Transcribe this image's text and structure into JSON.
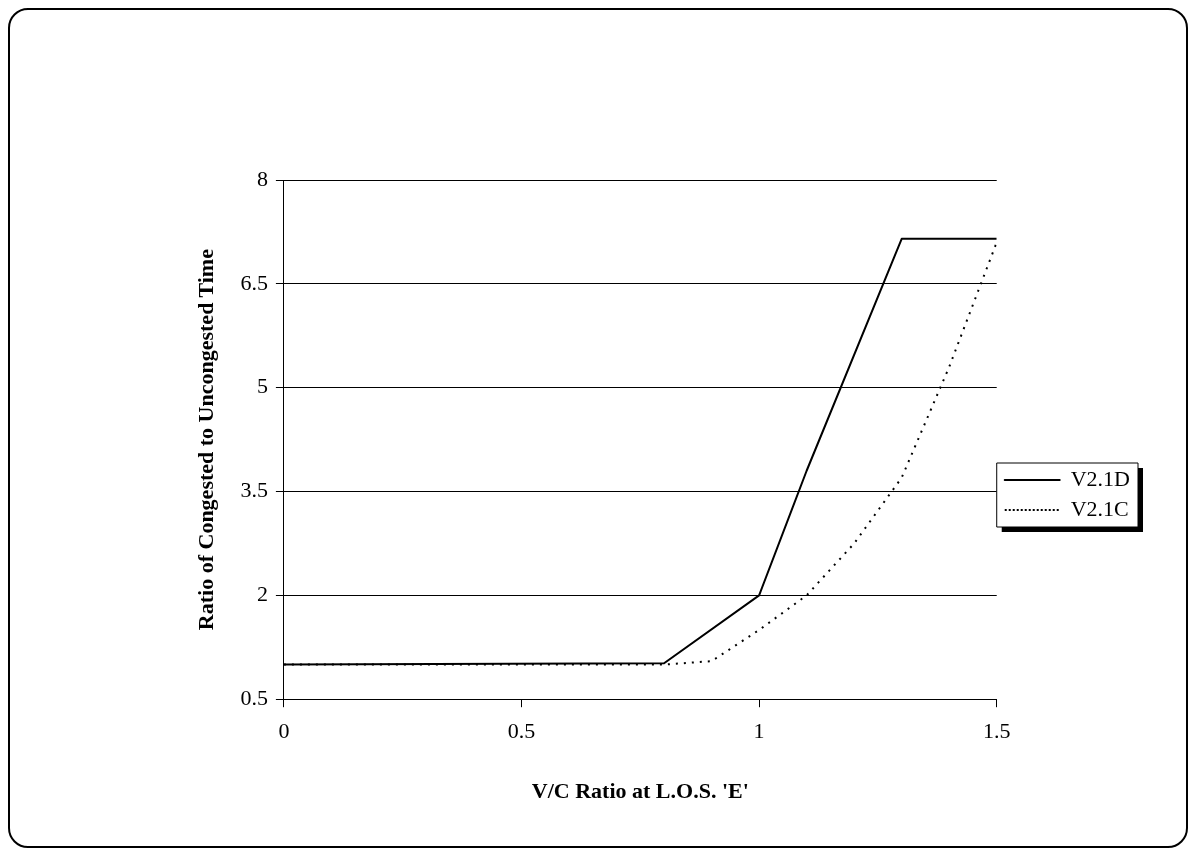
{
  "chart_data": {
    "type": "line",
    "xlabel": "V/C Ratio at L.O.S. 'E'",
    "ylabel": "Ratio of Congested to Uncongested Time",
    "xlim": [
      0,
      1.5
    ],
    "xticks": [
      0,
      0.5,
      1,
      1.5
    ],
    "ylim": [
      0.5,
      8
    ],
    "yticks": [
      0.5,
      2,
      3.5,
      5,
      6.5,
      8
    ],
    "grid": "y",
    "legend": "right",
    "marker": "none",
    "series": [
      {
        "name": "V2.1D",
        "color": "#000000",
        "line_style": "solid",
        "x": [
          0,
          0.8,
          1.0,
          1.1,
          1.3,
          1.5
        ],
        "values": [
          1.0,
          1.02,
          2.0,
          3.8,
          7.15,
          7.15
        ]
      },
      {
        "name": "V2.1C",
        "color": "#000000",
        "line_style": "dotted",
        "x": [
          0,
          0.8,
          0.9,
          1.0,
          1.1,
          1.2,
          1.3,
          1.4,
          1.5
        ],
        "values": [
          1.0,
          1.0,
          1.05,
          1.5,
          2.0,
          2.75,
          3.7,
          5.3,
          7.1
        ]
      }
    ]
  }
}
